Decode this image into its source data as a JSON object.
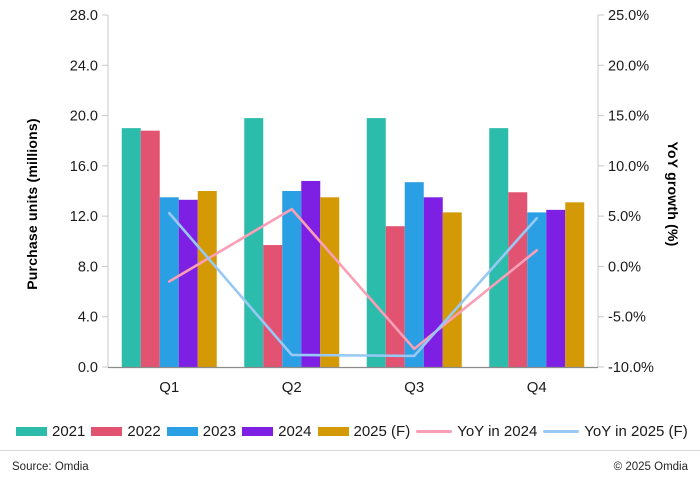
{
  "chart_data": {
    "type": "bar+line",
    "categories": [
      "Q1",
      "Q2",
      "Q3",
      "Q4"
    ],
    "bar_series": [
      {
        "name": "2021",
        "color": "#2cbcab",
        "values": [
          19.0,
          19.8,
          19.8,
          19.0
        ]
      },
      {
        "name": "2022",
        "color": "#e25372",
        "values": [
          18.8,
          9.7,
          11.2,
          13.9
        ]
      },
      {
        "name": "2023",
        "color": "#2b9fe3",
        "values": [
          13.5,
          14.0,
          14.7,
          12.3
        ]
      },
      {
        "name": "2024",
        "color": "#7e20e3",
        "values": [
          13.3,
          14.8,
          13.5,
          12.5
        ]
      },
      {
        "name": "2025 (F)",
        "color": "#d49a05",
        "values": [
          14.0,
          13.5,
          12.3,
          13.1
        ]
      }
    ],
    "line_series": [
      {
        "name": "YoY in 2024",
        "color": "#fa9fb5",
        "values": [
          -1.5,
          5.7,
          -8.2,
          1.6
        ]
      },
      {
        "name": "YoY in 2025 (F)",
        "color": "#97c9f4",
        "values": [
          5.3,
          -8.8,
          -8.9,
          4.8
        ]
      }
    ],
    "left_axis": {
      "label": "Purchase units (millions)",
      "min": 0,
      "max": 28,
      "step": 4
    },
    "right_axis": {
      "label": "YoY growth (%)",
      "min": -10,
      "max": 25,
      "step": 5
    },
    "grid": false,
    "legend_position": "bottom"
  },
  "footer": {
    "source": "Source: Omdia",
    "copyright": "© 2025 Omdia"
  }
}
